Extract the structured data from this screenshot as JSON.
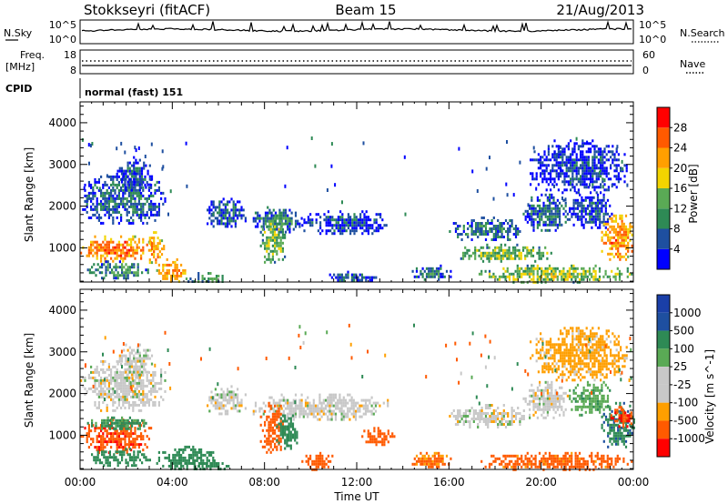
{
  "header": {
    "station": "Stokkseyri (fitACF)",
    "beam": "Beam 15",
    "date": "21/Aug/2013"
  },
  "status_panels": {
    "nsky_label": "N.Sky",
    "nsearch_label": "N.Search",
    "noise_ticks": [
      "10^5",
      "10^0"
    ],
    "freq_label_line1": "Freq.",
    "freq_label_line2": "[MHz]",
    "freq_ticks": [
      "18",
      "8"
    ],
    "nave_ticks": [
      "60",
      "0"
    ],
    "nave_label": "Nave",
    "cpid_label": "CPID",
    "cpid_value": "normal (fast) 151"
  },
  "x_axis": {
    "label": "Time UT",
    "ticks": [
      "00:00",
      "04:00",
      "08:00",
      "12:00",
      "16:00",
      "20:00",
      "00:00"
    ]
  },
  "colors": {
    "power_scale": [
      "#0000ff",
      "#1e4fa0",
      "#2e8a55",
      "#5aaa55",
      "#f2d400",
      "#ff9f00",
      "#ff5a00",
      "#ff0000"
    ],
    "velocity_scale": [
      "#ff0000",
      "#ff5a00",
      "#ff9f00",
      "#c8c8c8",
      "#c8c8c8",
      "#5aaa55",
      "#2e8a55",
      "#1e4fa0",
      "#1a3fa8"
    ]
  },
  "chart_data": [
    {
      "type": "heatmap",
      "title": "",
      "ylabel": "Slant Range [km]",
      "xlabel": "",
      "y_ticks": [
        "1000",
        "2000",
        "3000",
        "4000"
      ],
      "ylim": [
        180,
        4500
      ],
      "xlim_hours": [
        0,
        24
      ],
      "colorbar_label": "Power [dB]",
      "colorbar_ticks": [
        "4",
        "8",
        "12",
        "16",
        "20",
        "24",
        "28"
      ],
      "colorbar_range": [
        0,
        32
      ],
      "regions": [
        {
          "t0": 0.0,
          "t1": 3.1,
          "r0": 700,
          "r1": 1300,
          "v": 25
        },
        {
          "t0": 2.9,
          "t1": 3.6,
          "r0": 600,
          "r1": 1400,
          "v": 22
        },
        {
          "t0": 0.0,
          "t1": 3.7,
          "r0": 1600,
          "r1": 2800,
          "v": 8
        },
        {
          "t0": 1.6,
          "t1": 3.1,
          "r0": 2400,
          "r1": 3200,
          "v": 6
        },
        {
          "t0": 0.3,
          "t1": 3.0,
          "r0": 300,
          "r1": 700,
          "v": 11
        },
        {
          "t0": 3.3,
          "t1": 4.6,
          "r0": 180,
          "r1": 750,
          "v": 23
        },
        {
          "t0": 4.4,
          "t1": 6.4,
          "r0": 180,
          "r1": 420,
          "v": 12
        },
        {
          "t0": 5.4,
          "t1": 7.2,
          "r0": 1500,
          "r1": 2200,
          "v": 7
        },
        {
          "t0": 7.4,
          "t1": 9.6,
          "r0": 1400,
          "r1": 2000,
          "v": 9
        },
        {
          "t0": 7.8,
          "t1": 8.9,
          "r0": 600,
          "r1": 1800,
          "v": 15
        },
        {
          "t0": 9.6,
          "t1": 13.4,
          "r0": 1350,
          "r1": 1900,
          "v": 6
        },
        {
          "t0": 10.8,
          "t1": 12.8,
          "r0": 180,
          "r1": 450,
          "v": 7
        },
        {
          "t0": 14.3,
          "t1": 16.2,
          "r0": 250,
          "r1": 600,
          "v": 9
        },
        {
          "t0": 16.0,
          "t1": 19.3,
          "r0": 1200,
          "r1": 1750,
          "v": 9
        },
        {
          "t0": 16.4,
          "t1": 20.5,
          "r0": 700,
          "r1": 1100,
          "v": 15
        },
        {
          "t0": 17.2,
          "t1": 23.9,
          "r0": 200,
          "r1": 600,
          "v": 16
        },
        {
          "t0": 19.2,
          "t1": 21.2,
          "r0": 1400,
          "r1": 2300,
          "v": 9
        },
        {
          "t0": 19.5,
          "t1": 23.7,
          "r0": 2300,
          "r1": 3600,
          "v": 5
        },
        {
          "t0": 21.2,
          "t1": 23.1,
          "r0": 1500,
          "r1": 2300,
          "v": 6
        },
        {
          "t0": 22.6,
          "t1": 24.0,
          "r0": 700,
          "r1": 1800,
          "v": 24
        }
      ]
    },
    {
      "type": "heatmap",
      "title": "",
      "ylabel": "Slant Range [km]",
      "xlabel": "Time UT",
      "y_ticks": [
        "1000",
        "2000",
        "3000",
        "4000"
      ],
      "ylim": [
        180,
        4500
      ],
      "xlim_hours": [
        0,
        24
      ],
      "colorbar_label": "Velocity [m s^-1]",
      "colorbar_ticks": [
        "1000",
        "500",
        "100",
        "25",
        "-25",
        "-100",
        "-500",
        "-1000"
      ],
      "colorbar_range": [
        -1000,
        1000
      ],
      "regions": [
        {
          "t0": 0.0,
          "t1": 3.1,
          "r0": 600,
          "r1": 1400,
          "v": -400
        },
        {
          "t0": 0.3,
          "t1": 2.9,
          "r0": 1150,
          "r1": 1450,
          "v": 120
        },
        {
          "t0": 0.0,
          "t1": 3.7,
          "r0": 1600,
          "r1": 2800,
          "v": 0
        },
        {
          "t0": 1.6,
          "t1": 3.1,
          "r0": 2400,
          "r1": 3200,
          "v": 0
        },
        {
          "t0": 0.3,
          "t1": 3.0,
          "r0": 300,
          "r1": 700,
          "v": 200
        },
        {
          "t0": 3.3,
          "t1": 5.8,
          "r0": 180,
          "r1": 750,
          "v": 300
        },
        {
          "t0": 4.4,
          "t1": 6.4,
          "r0": 180,
          "r1": 420,
          "v": 200
        },
        {
          "t0": 5.4,
          "t1": 7.2,
          "r0": 1500,
          "r1": 2200,
          "v": 0
        },
        {
          "t0": 7.4,
          "t1": 13.4,
          "r0": 1400,
          "r1": 2000,
          "v": 0
        },
        {
          "t0": 7.8,
          "t1": 8.9,
          "r0": 600,
          "r1": 1800,
          "v": -300
        },
        {
          "t0": 8.5,
          "t1": 9.4,
          "r0": 700,
          "r1": 1500,
          "v": 250
        },
        {
          "t0": 9.6,
          "t1": 11.0,
          "r0": 180,
          "r1": 600,
          "v": -200
        },
        {
          "t0": 12.2,
          "t1": 13.6,
          "r0": 800,
          "r1": 1200,
          "v": -250
        },
        {
          "t0": 14.3,
          "t1": 16.2,
          "r0": 250,
          "r1": 600,
          "v": -120
        },
        {
          "t0": 16.0,
          "t1": 19.3,
          "r0": 1200,
          "r1": 1750,
          "v": 0
        },
        {
          "t0": 17.2,
          "t1": 23.9,
          "r0": 200,
          "r1": 600,
          "v": -150
        },
        {
          "t0": 19.2,
          "t1": 21.2,
          "r0": 1400,
          "r1": 2300,
          "v": 0
        },
        {
          "t0": 19.5,
          "t1": 23.7,
          "r0": 2300,
          "r1": 3600,
          "v": -50
        },
        {
          "t0": 21.2,
          "t1": 23.1,
          "r0": 1500,
          "r1": 2300,
          "v": 80
        },
        {
          "t0": 22.6,
          "t1": 24.0,
          "r0": 700,
          "r1": 1800,
          "v": 400
        },
        {
          "t0": 23.0,
          "t1": 24.0,
          "r0": 1200,
          "r1": 1700,
          "v": -500
        }
      ]
    }
  ]
}
